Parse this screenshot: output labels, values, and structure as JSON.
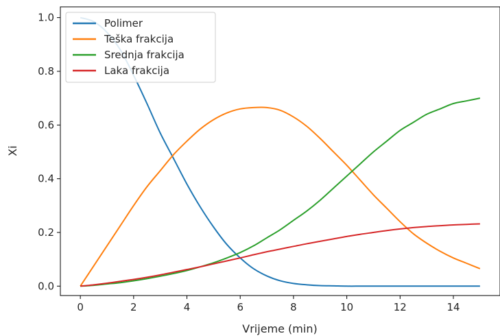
{
  "chart_data": {
    "type": "line",
    "title": "",
    "xlabel": "Vrijeme (min)",
    "ylabel": "Xi",
    "xlim": [
      -0.75,
      15.75
    ],
    "ylim": [
      -0.035,
      1.04
    ],
    "xticks": [
      0,
      2,
      4,
      6,
      8,
      10,
      12,
      14
    ],
    "xtick_labels": [
      "0",
      "2",
      "4",
      "6",
      "8",
      "10",
      "12",
      "14"
    ],
    "yticks": [
      0.0,
      0.2,
      0.4,
      0.6,
      0.8,
      1.0
    ],
    "ytick_labels": [
      "0.0",
      "0.2",
      "0.4",
      "0.6",
      "0.8",
      "1.0"
    ],
    "grid": false,
    "legend_position": "top-left",
    "x": [
      0,
      0.5,
      1,
      1.5,
      2,
      2.5,
      3,
      3.5,
      4,
      4.5,
      5,
      5.5,
      6,
      6.5,
      7,
      7.5,
      8,
      8.5,
      9,
      9.5,
      10,
      10.5,
      11,
      11.5,
      12,
      12.5,
      13,
      13.5,
      14,
      14.5,
      15
    ],
    "series": [
      {
        "name": "Polimer",
        "color": "#1f77b4",
        "values": [
          1.0,
          0.985,
          0.945,
          0.88,
          0.785,
          0.68,
          0.57,
          0.475,
          0.38,
          0.295,
          0.22,
          0.155,
          0.105,
          0.065,
          0.038,
          0.02,
          0.01,
          0.005,
          0.002,
          0.001,
          0.0,
          0.0,
          0.0,
          0.0,
          0.0,
          0.0,
          0.0,
          0.0,
          0.0,
          0.0,
          0.0
        ]
      },
      {
        "name": "Teška frakcija",
        "color": "#ff7f0e",
        "values": [
          0.0,
          0.075,
          0.15,
          0.225,
          0.3,
          0.37,
          0.43,
          0.49,
          0.54,
          0.585,
          0.62,
          0.645,
          0.66,
          0.665,
          0.665,
          0.655,
          0.63,
          0.595,
          0.55,
          0.5,
          0.45,
          0.395,
          0.34,
          0.29,
          0.24,
          0.195,
          0.16,
          0.13,
          0.105,
          0.085,
          0.065
        ]
      },
      {
        "name": "Srednja frakcija",
        "color": "#2ca02c",
        "values": [
          0.0,
          0.003,
          0.008,
          0.013,
          0.02,
          0.028,
          0.037,
          0.047,
          0.058,
          0.072,
          0.087,
          0.105,
          0.125,
          0.15,
          0.18,
          0.21,
          0.245,
          0.28,
          0.32,
          0.365,
          0.41,
          0.455,
          0.5,
          0.54,
          0.58,
          0.61,
          0.64,
          0.66,
          0.68,
          0.69,
          0.7
        ]
      },
      {
        "name": "Laka frakcija",
        "color": "#d62728",
        "values": [
          0.0,
          0.005,
          0.011,
          0.018,
          0.025,
          0.033,
          0.042,
          0.052,
          0.062,
          0.072,
          0.083,
          0.094,
          0.105,
          0.117,
          0.128,
          0.138,
          0.148,
          0.158,
          0.167,
          0.176,
          0.185,
          0.193,
          0.2,
          0.207,
          0.213,
          0.218,
          0.222,
          0.225,
          0.228,
          0.23,
          0.232
        ]
      }
    ]
  }
}
